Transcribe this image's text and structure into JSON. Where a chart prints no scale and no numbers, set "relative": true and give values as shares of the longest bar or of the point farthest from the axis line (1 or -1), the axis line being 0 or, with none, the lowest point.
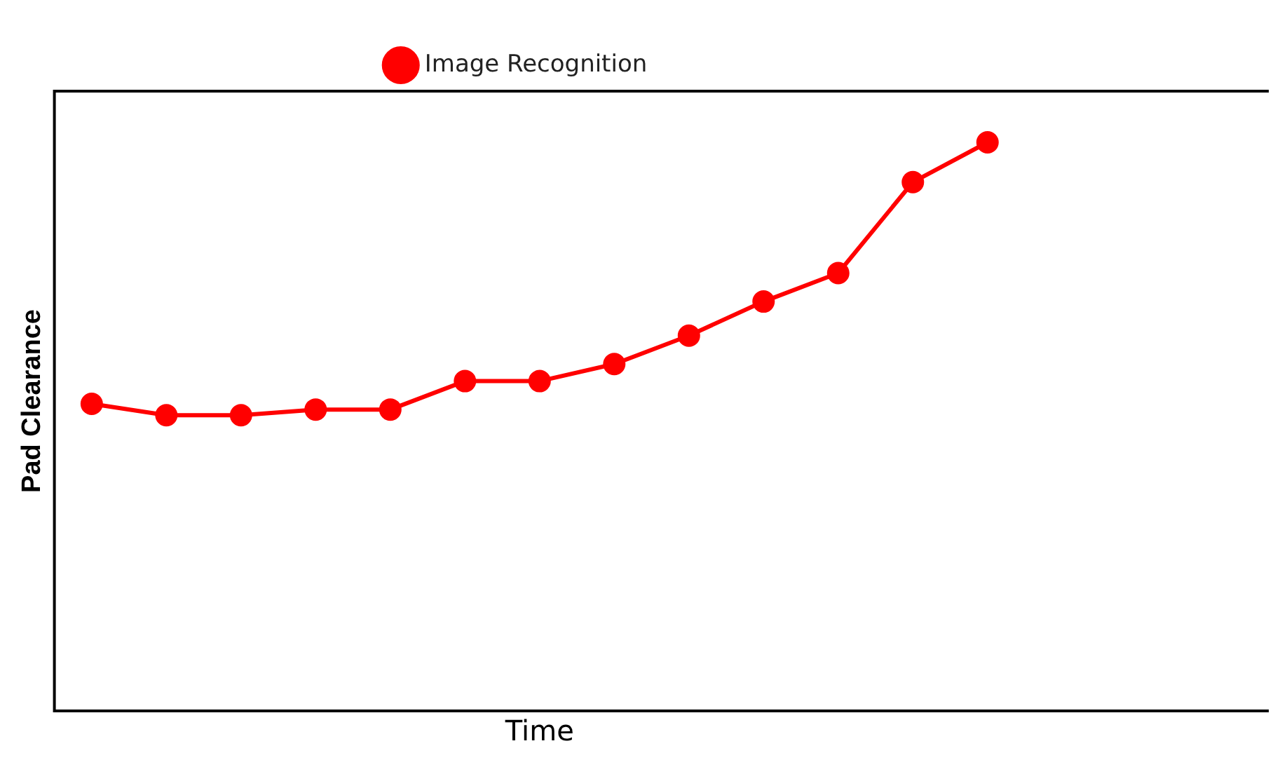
{
  "chart_data": {
    "type": "line",
    "xlabel": "Time",
    "ylabel": "Pad Clearance",
    "relative": true,
    "categories": [
      null,
      null,
      null,
      null,
      null,
      null,
      null,
      null,
      null,
      null,
      null,
      null,
      null
    ],
    "series": [
      {
        "name": "Image Recognition",
        "color": "#ff0000",
        "values": [
          0.54,
          0.52,
          0.52,
          0.53,
          0.53,
          0.58,
          0.58,
          0.61,
          0.66,
          0.72,
          0.77,
          0.93,
          1
        ]
      }
    ],
    "legend": "top",
    "marker": "circle",
    "line_style": "solid",
    "grid": false
  }
}
